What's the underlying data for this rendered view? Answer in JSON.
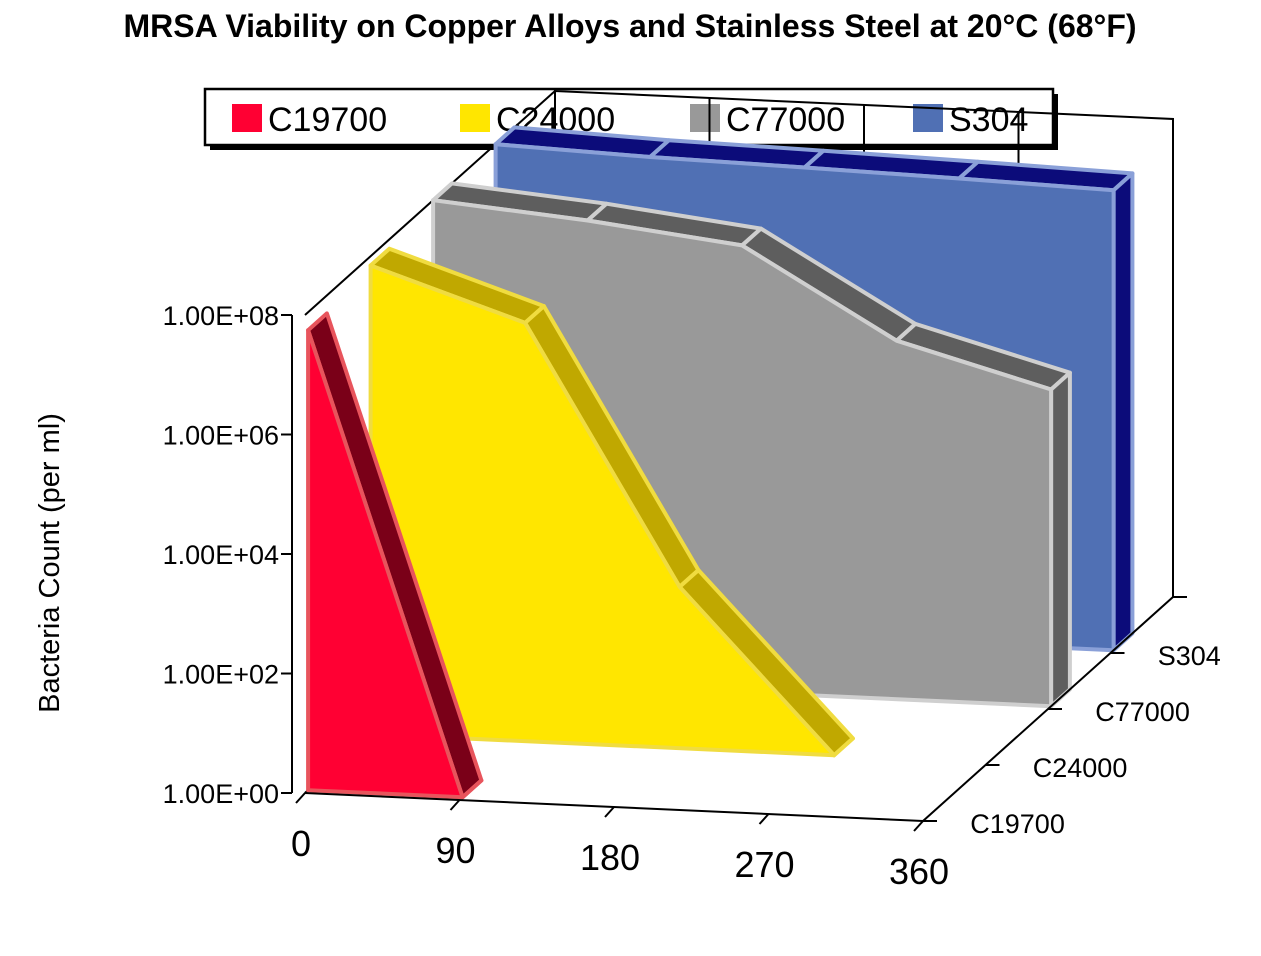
{
  "chart_data": {
    "type": "area",
    "projection": "3d-ribbon",
    "title": "MRSA Viability on Copper Alloys and Stainless Steel at 20°C (68°F)",
    "ylabel": "Bacteria Count (per ml)",
    "xlabel": "",
    "y_scale": "log",
    "y_ticks": [
      "1.00E+00",
      "1.00E+02",
      "1.00E+04",
      "1.00E+06",
      "1.00E+08"
    ],
    "y_tick_values": [
      1,
      100,
      10000,
      1000000,
      100000000
    ],
    "x_ticks": [
      "0",
      "90",
      "180",
      "270",
      "360"
    ],
    "x_tick_values": [
      0,
      90,
      180,
      270,
      360
    ],
    "z_ticks": [
      "C19700",
      "C24000",
      "C77000",
      "S304"
    ],
    "legend_position": "top",
    "grid": false,
    "series": [
      {
        "name": "C19700",
        "color": "#ff0033",
        "edge": "#e8545c",
        "dark": "#7a0018",
        "x": [
          0,
          90
        ],
        "y": [
          50000000,
          1
        ]
      },
      {
        "name": "C24000",
        "color": "#ffe600",
        "edge": "#f0dc40",
        "dark": "#c0a800",
        "x": [
          0,
          90,
          180,
          270
        ],
        "y": [
          70000000,
          10000000,
          500,
          1
        ]
      },
      {
        "name": "C77000",
        "color": "#999999",
        "edge": "#cfcfcf",
        "dark": "#5e5e5e",
        "x": [
          0,
          90,
          180,
          270,
          360
        ],
        "y": [
          100000000,
          60000000,
          30000000,
          1000000,
          200000
        ]
      },
      {
        "name": "S304",
        "color": "#5070b4",
        "edge": "#8aa0d8",
        "dark": "#0c0c7a",
        "x": [
          0,
          90,
          180,
          270,
          360
        ],
        "y": [
          100000000,
          80000000,
          70000000,
          60000000,
          50000000
        ]
      }
    ]
  }
}
